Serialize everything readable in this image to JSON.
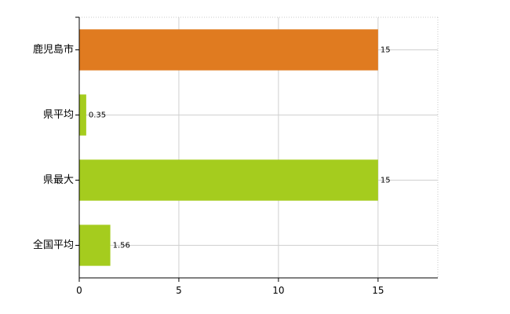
{
  "chart_data": {
    "type": "bar",
    "orientation": "horizontal",
    "categories": [
      "鹿児島市",
      "県平均",
      "県最大",
      "全国平均"
    ],
    "values": [
      15,
      0.35,
      15,
      1.56
    ],
    "data_labels": [
      "15",
      "0.35",
      "15",
      "1.56"
    ],
    "bar_colors": [
      "#e07b20",
      "#a5cc1e",
      "#a5cc1e",
      "#a5cc1e"
    ],
    "x_ticks": [
      0,
      5,
      10,
      15
    ],
    "xlim": [
      0,
      18
    ],
    "title": "",
    "xlabel": "",
    "ylabel": "",
    "grid": true,
    "legend": "none"
  }
}
